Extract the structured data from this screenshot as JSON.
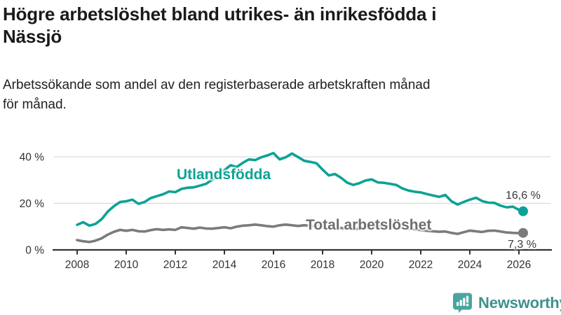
{
  "title": "Högre arbetslöshet bland utrikes- än inrikesfödda i Nässjö",
  "title_lines": [
    "Högre arbetslöshet bland utrikes- än inrikesfödda i",
    "Nässjö"
  ],
  "subtitle": "Arbetssökande som andel av den registerbaserade arbetskraften månad för månad.",
  "subtitle_lines": [
    "Arbetssökande som andel av den registerbaserade arbetskraften månad",
    "för månad."
  ],
  "branding": {
    "logo_text": "Newsworthy",
    "logo_icon": "bar-chart-speech-bubble-icon",
    "logo_icon_color": "#4aa5a0",
    "logo_text_color": "#3f918d"
  },
  "colors": {
    "background": "#ffffff",
    "title_text": "#1a1a1a",
    "series1": "#0ca295",
    "series2": "#7b7b7b",
    "series2_label": "#6e6e73",
    "end_label_text": "#3b3b3b",
    "axis": "#333333",
    "axis_text": "#333333",
    "gridline": "#d9d9d9"
  },
  "chart_data": {
    "type": "line",
    "title": "Högre arbetslöshet bland utrikes- än inrikesfödda i Nässjö",
    "subtitle": "Arbetssökande som andel av den registerbaserade arbetskraften månad för månad.",
    "unit": "%",
    "xlabel": "",
    "ylabel": "",
    "ylim": [
      0,
      44
    ],
    "x_range": [
      2008,
      2026.17
    ],
    "grid": "horizontal",
    "legend_position": "inline-labels",
    "x_axis": {
      "ticks": [
        2008,
        2010,
        2012,
        2014,
        2016,
        2018,
        2020,
        2022,
        2024,
        2026
      ]
    },
    "y_axis": {
      "ticks": [
        {
          "label": "0 %",
          "value": 0
        },
        {
          "label": "20 %",
          "value": 20
        },
        {
          "label": "40 %",
          "value": 40
        }
      ]
    },
    "series": [
      {
        "name": "Utlandsfödda",
        "color": "#0ca295",
        "end_label": "16,6 %",
        "end_value": 16.6,
        "points": [
          [
            2008,
            10.8
          ],
          [
            2008.25,
            11.9
          ],
          [
            2008.5,
            10.4
          ],
          [
            2008.75,
            11.2
          ],
          [
            2009,
            13.2
          ],
          [
            2009.25,
            16.5
          ],
          [
            2009.5,
            18.8
          ],
          [
            2009.75,
            20.6
          ],
          [
            2010,
            20.9
          ],
          [
            2010.25,
            21.6
          ],
          [
            2010.5,
            19.8
          ],
          [
            2010.75,
            20.6
          ],
          [
            2011,
            22.3
          ],
          [
            2011.25,
            23.1
          ],
          [
            2011.5,
            23.9
          ],
          [
            2011.75,
            25.1
          ],
          [
            2012,
            24.8
          ],
          [
            2012.25,
            26.2
          ],
          [
            2012.5,
            26.7
          ],
          [
            2012.75,
            26.9
          ],
          [
            2013,
            27.6
          ],
          [
            2013.25,
            28.4
          ],
          [
            2013.5,
            30.1
          ],
          [
            2013.75,
            32.3
          ],
          [
            2014,
            34.2
          ],
          [
            2014.25,
            36.4
          ],
          [
            2014.5,
            35.6
          ],
          [
            2014.75,
            37.4
          ],
          [
            2015,
            38.9
          ],
          [
            2015.25,
            38.6
          ],
          [
            2015.5,
            39.8
          ],
          [
            2015.75,
            40.6
          ],
          [
            2016,
            41.6
          ],
          [
            2016.25,
            38.9
          ],
          [
            2016.5,
            39.8
          ],
          [
            2016.75,
            41.4
          ],
          [
            2017,
            39.9
          ],
          [
            2017.25,
            38.3
          ],
          [
            2017.5,
            37.8
          ],
          [
            2017.75,
            37.2
          ],
          [
            2018,
            34.5
          ],
          [
            2018.25,
            32.0
          ],
          [
            2018.5,
            32.6
          ],
          [
            2018.75,
            31.0
          ],
          [
            2019,
            28.9
          ],
          [
            2019.25,
            27.9
          ],
          [
            2019.5,
            28.7
          ],
          [
            2019.75,
            29.8
          ],
          [
            2020,
            30.3
          ],
          [
            2020.25,
            29.0
          ],
          [
            2020.5,
            28.8
          ],
          [
            2020.75,
            28.4
          ],
          [
            2021,
            27.9
          ],
          [
            2021.25,
            26.4
          ],
          [
            2021.5,
            25.5
          ],
          [
            2021.75,
            25.0
          ],
          [
            2022,
            24.7
          ],
          [
            2022.25,
            24.0
          ],
          [
            2022.5,
            23.4
          ],
          [
            2022.75,
            22.8
          ],
          [
            2023,
            23.6
          ],
          [
            2023.25,
            20.9
          ],
          [
            2023.5,
            19.5
          ],
          [
            2023.75,
            20.6
          ],
          [
            2024,
            21.6
          ],
          [
            2024.25,
            22.4
          ],
          [
            2024.5,
            21.0
          ],
          [
            2024.75,
            20.3
          ],
          [
            2025,
            20.2
          ],
          [
            2025.25,
            19.0
          ],
          [
            2025.5,
            18.3
          ],
          [
            2025.75,
            18.6
          ],
          [
            2026,
            17.2
          ],
          [
            2026.17,
            16.6
          ]
        ]
      },
      {
        "name": "Total arbetslöshet",
        "color": "#7b7b7b",
        "end_label": "7,3 %",
        "end_value": 7.3,
        "points": [
          [
            2008,
            4.2
          ],
          [
            2008.25,
            3.7
          ],
          [
            2008.5,
            3.4
          ],
          [
            2008.75,
            4.0
          ],
          [
            2009,
            5.0
          ],
          [
            2009.25,
            6.6
          ],
          [
            2009.5,
            7.8
          ],
          [
            2009.75,
            8.6
          ],
          [
            2010,
            8.2
          ],
          [
            2010.25,
            8.6
          ],
          [
            2010.5,
            8.0
          ],
          [
            2010.75,
            7.9
          ],
          [
            2011,
            8.5
          ],
          [
            2011.25,
            8.9
          ],
          [
            2011.5,
            8.6
          ],
          [
            2011.75,
            8.8
          ],
          [
            2012,
            8.6
          ],
          [
            2012.25,
            9.7
          ],
          [
            2012.5,
            9.4
          ],
          [
            2012.75,
            9.1
          ],
          [
            2013,
            9.6
          ],
          [
            2013.25,
            9.2
          ],
          [
            2013.5,
            9.1
          ],
          [
            2013.75,
            9.4
          ],
          [
            2014,
            9.7
          ],
          [
            2014.25,
            9.3
          ],
          [
            2014.5,
            10.0
          ],
          [
            2014.75,
            10.4
          ],
          [
            2015,
            10.6
          ],
          [
            2015.25,
            10.9
          ],
          [
            2015.5,
            10.6
          ],
          [
            2015.75,
            10.2
          ],
          [
            2016,
            10.0
          ],
          [
            2016.25,
            10.6
          ],
          [
            2016.5,
            10.9
          ],
          [
            2016.75,
            10.6
          ],
          [
            2017,
            10.3
          ],
          [
            2017.25,
            10.6
          ],
          [
            2017.5,
            10.4
          ],
          [
            2017.75,
            10.1
          ],
          [
            2018,
            9.8
          ],
          [
            2018.25,
            9.5
          ],
          [
            2018.5,
            9.7
          ],
          [
            2018.75,
            9.4
          ],
          [
            2019,
            9.1
          ],
          [
            2019.25,
            8.9
          ],
          [
            2019.5,
            9.2
          ],
          [
            2019.75,
            9.5
          ],
          [
            2020,
            9.7
          ],
          [
            2020.25,
            10.3
          ],
          [
            2020.5,
            10.6
          ],
          [
            2020.75,
            10.2
          ],
          [
            2021,
            9.9
          ],
          [
            2021.25,
            9.5
          ],
          [
            2021.5,
            9.1
          ],
          [
            2021.75,
            8.8
          ],
          [
            2022,
            8.5
          ],
          [
            2022.25,
            8.2
          ],
          [
            2022.5,
            8.0
          ],
          [
            2022.75,
            7.8
          ],
          [
            2023,
            7.9
          ],
          [
            2023.25,
            7.3
          ],
          [
            2023.5,
            6.9
          ],
          [
            2023.75,
            7.6
          ],
          [
            2024,
            8.3
          ],
          [
            2024.25,
            8.0
          ],
          [
            2024.5,
            7.7
          ],
          [
            2024.75,
            8.2
          ],
          [
            2025,
            8.3
          ],
          [
            2025.25,
            7.9
          ],
          [
            2025.5,
            7.5
          ],
          [
            2025.75,
            7.3
          ],
          [
            2026,
            7.2
          ],
          [
            2026.17,
            7.3
          ]
        ]
      }
    ]
  }
}
